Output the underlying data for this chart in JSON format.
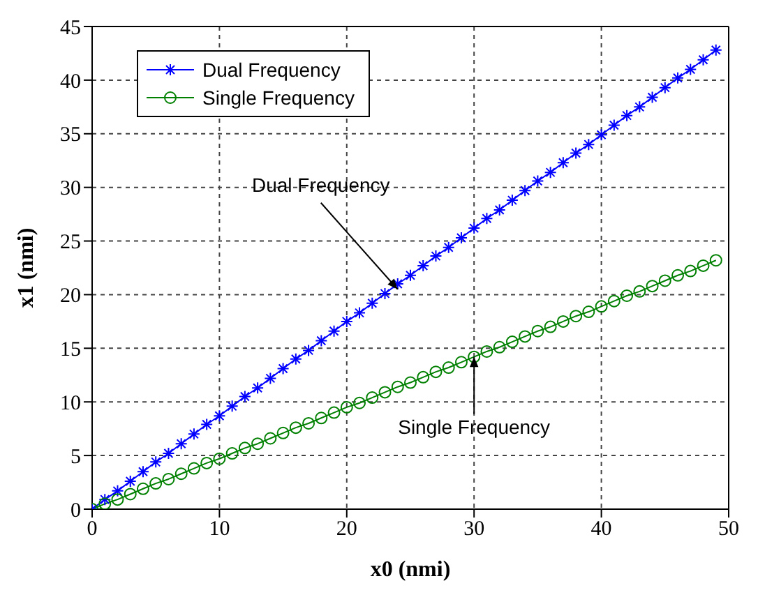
{
  "chart_data": {
    "type": "line",
    "xlabel": "x0 (nmi)",
    "ylabel": "x1 (nmi)",
    "x": [
      0,
      1,
      2,
      3,
      4,
      5,
      6,
      7,
      8,
      9,
      10,
      11,
      12,
      13,
      14,
      15,
      16,
      17,
      18,
      19,
      20,
      21,
      22,
      23,
      24,
      25,
      26,
      27,
      28,
      29,
      30,
      31,
      32,
      33,
      34,
      35,
      36,
      37,
      38,
      39,
      40,
      41,
      42,
      43,
      44,
      45,
      46,
      47,
      48,
      49
    ],
    "series": [
      {
        "name": "Dual Frequency",
        "color": "#0000ff",
        "marker": "cross",
        "values": [
          0,
          0.9,
          1.7,
          2.6,
          3.5,
          4.4,
          5.2,
          6.1,
          7.0,
          7.9,
          8.7,
          9.6,
          10.5,
          11.3,
          12.2,
          13.1,
          14.0,
          14.8,
          15.7,
          16.6,
          17.5,
          18.3,
          19.2,
          20.1,
          21.0,
          21.8,
          22.7,
          23.6,
          24.4,
          25.3,
          26.2,
          27.1,
          27.9,
          28.8,
          29.7,
          30.6,
          31.4,
          32.3,
          33.2,
          34.0,
          34.9,
          35.8,
          36.7,
          37.5,
          38.4,
          39.3,
          40.2,
          41.0,
          41.9,
          42.8
        ]
      },
      {
        "name": "Single Frequency",
        "color": "#008000",
        "marker": "circle",
        "values": [
          0,
          0.5,
          0.9,
          1.4,
          1.9,
          2.4,
          2.8,
          3.3,
          3.8,
          4.3,
          4.7,
          5.2,
          5.7,
          6.1,
          6.6,
          7.1,
          7.6,
          8.0,
          8.5,
          9.0,
          9.5,
          9.9,
          10.4,
          10.9,
          11.4,
          11.8,
          12.3,
          12.8,
          13.2,
          13.7,
          14.2,
          14.7,
          15.1,
          15.6,
          16.1,
          16.6,
          17.0,
          17.5,
          18.0,
          18.4,
          18.9,
          19.4,
          19.9,
          20.3,
          20.8,
          21.3,
          21.8,
          22.2,
          22.7,
          23.2
        ]
      }
    ],
    "xlim": [
      0,
      50
    ],
    "xticks": [
      0,
      10,
      20,
      30,
      40,
      50
    ],
    "ylim": [
      0,
      45
    ],
    "yticks": [
      0,
      5,
      10,
      15,
      20,
      25,
      30,
      35,
      40,
      45
    ],
    "grid": true,
    "legend": "top left",
    "line_style": "solid",
    "annotations": [
      {
        "text": "Dual Frequency",
        "x": 24,
        "y": 20.5
      },
      {
        "text": "Single Frequency",
        "x": 30,
        "y": 14.2
      }
    ]
  }
}
